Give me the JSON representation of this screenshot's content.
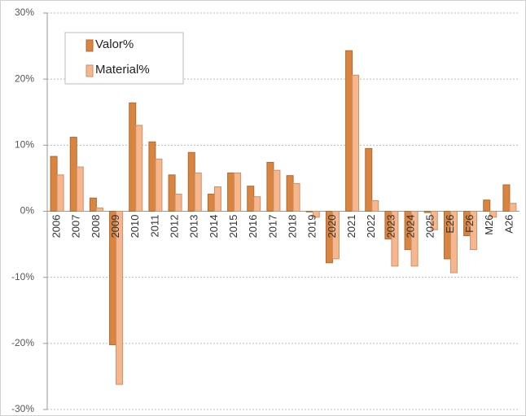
{
  "chart_data": {
    "type": "bar",
    "categories": [
      "2006",
      "2007",
      "2008",
      "2009",
      "2010",
      "2011",
      "2012",
      "2013",
      "2014",
      "2015",
      "2016",
      "2017",
      "2018",
      "2019",
      "2020",
      "2021",
      "2022",
      "2023",
      "2024",
      "2025",
      "E26",
      "F26",
      "M26",
      "A26"
    ],
    "series": [
      {
        "name": "Valor%",
        "color": "#d9843f",
        "values": [
          8.3,
          11.2,
          2.0,
          -20.2,
          16.4,
          10.5,
          5.5,
          8.9,
          2.6,
          5.8,
          3.8,
          7.4,
          5.4,
          -0.1,
          -7.8,
          24.3,
          9.5,
          -4.2,
          -5.8,
          -0.2,
          -7.2,
          -3.7,
          1.7,
          4.0
        ]
      },
      {
        "name": "Material%",
        "color": "#f7b68c",
        "values": [
          5.5,
          6.7,
          0.5,
          -26.2,
          13.0,
          7.9,
          2.6,
          5.8,
          3.7,
          5.8,
          2.2,
          6.2,
          4.2,
          -0.9,
          -7.2,
          20.6,
          1.6,
          -8.3,
          -8.3,
          -2.8,
          -9.3,
          -5.8,
          -0.9,
          1.2
        ]
      }
    ],
    "ylim": [
      -30,
      30
    ],
    "yticks": [
      {
        "value": -30,
        "label": "-30%"
      },
      {
        "value": -20,
        "label": "-20%"
      },
      {
        "value": -10,
        "label": "-10%"
      },
      {
        "value": 0,
        "label": "0%"
      },
      {
        "value": 10,
        "label": "10%"
      },
      {
        "value": 20,
        "label": "20%"
      },
      {
        "value": 30,
        "label": "30%"
      }
    ],
    "grid": true,
    "legend": "upper left"
  }
}
